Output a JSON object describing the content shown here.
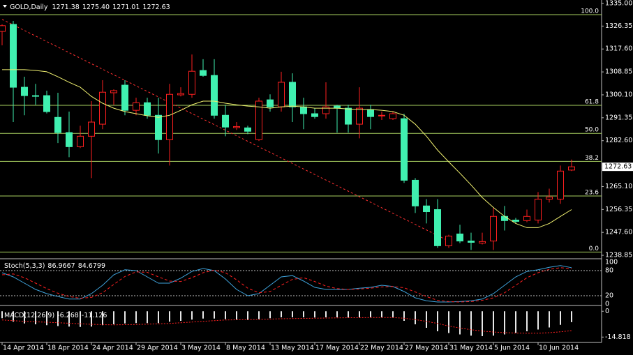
{
  "chart_data": [
    {
      "type": "candlestick",
      "title": "GOLD,Daily",
      "header_labels": [
        "1271.38",
        "1275.40",
        "1271.01",
        "1272.63"
      ],
      "categories": [
        "14 Apr 2014",
        null,
        null,
        null,
        "18 Apr 2014",
        null,
        null,
        null,
        "24 Apr 2014",
        null,
        null,
        null,
        "29 Apr 2014",
        null,
        null,
        null,
        "3 May 2014",
        null,
        null,
        null,
        "8 May 2014",
        null,
        null,
        null,
        "13 May 2014",
        null,
        null,
        null,
        "17 May 2014",
        null,
        null,
        null,
        "22 May 2014",
        null,
        null,
        null,
        "27 May 2014",
        null,
        null,
        null,
        "31 May 2014",
        null,
        null,
        null,
        "5 Jun 2014",
        null,
        null,
        null,
        "10 Jun 2014",
        null,
        null,
        null
      ],
      "open": [
        1324.3,
        1327.0,
        1303.0,
        1299.8,
        1299.8,
        1291.5,
        1285.7,
        1280.3,
        1284.3,
        1288.9,
        1300.9,
        1303.8,
        1294.2,
        1297.1,
        1292.3,
        1283.0,
        1300.1,
        1300.3,
        1309.4,
        1307.5,
        1292.3,
        1287.6,
        1287.5,
        1283.0,
        1298.2,
        1295.5,
        1304.9,
        1295.5,
        1292.9,
        1292.9,
        1295.8,
        1295.0,
        1288.9,
        1294.5,
        1292.1,
        1291.0,
        1291.0,
        1267.5,
        1257.7,
        1256.3,
        1242.5,
        1247.0,
        1244.3,
        1243.5,
        1244.3,
        1253.7,
        1252.3,
        1252.1,
        1252.3,
        1260.3,
        1260.3,
        1271.38
      ],
      "high": [
        1327.0,
        1328.3,
        1307.0,
        1304.3,
        1301.7,
        1300.9,
        1293.7,
        1288.3,
        1297.7,
        1305.7,
        1302.2,
        1305.7,
        1299.0,
        1299.0,
        1299.0,
        1304.3,
        1303.0,
        1315.5,
        1313.7,
        1313.7,
        1296.3,
        1289.7,
        1288.3,
        1299.0,
        1300.3,
        1308.9,
        1308.3,
        1299.0,
        1295.0,
        1304.9,
        1296.3,
        1296.3,
        1303.0,
        1296.3,
        1293.7,
        1293.7,
        1292.9,
        1268.3,
        1260.3,
        1260.3,
        1246.7,
        1250.5,
        1247.5,
        1247.5,
        1257.1,
        1257.7,
        1253.1,
        1256.3,
        1263.0,
        1264.3,
        1273.1,
        1275.4
      ],
      "low": [
        1319.0,
        1289.7,
        1292.3,
        1296.3,
        1293.0,
        1281.7,
        1276.3,
        1279.8,
        1268.3,
        1287.0,
        1296.3,
        1292.3,
        1292.3,
        1291.0,
        1277.7,
        1273.1,
        1299.5,
        1299.0,
        1307.0,
        1291.0,
        1284.3,
        1286.7,
        1285.1,
        1282.5,
        1293.7,
        1293.7,
        1289.7,
        1287.0,
        1291.0,
        1291.0,
        1285.7,
        1285.7,
        1283.5,
        1287.0,
        1290.5,
        1290.5,
        1266.5,
        1255.0,
        1251.0,
        1241.7,
        1241.7,
        1243.5,
        1240.9,
        1243.0,
        1240.9,
        1248.3,
        1251.0,
        1251.5,
        1251.0,
        1259.0,
        1258.5,
        1271.01
      ],
      "close": [
        1326.5,
        1303.0,
        1299.8,
        1299.6,
        1293.7,
        1285.7,
        1280.3,
        1284.3,
        1289.7,
        1301.1,
        1301.7,
        1294.2,
        1297.1,
        1292.3,
        1283.0,
        1300.3,
        1300.6,
        1309.1,
        1307.5,
        1292.3,
        1287.8,
        1288.0,
        1286.2,
        1297.7,
        1295.5,
        1304.9,
        1295.5,
        1292.9,
        1291.8,
        1295.5,
        1295.0,
        1288.9,
        1295.0,
        1291.8,
        1292.3,
        1292.9,
        1267.5,
        1257.7,
        1255.5,
        1242.5,
        1246.2,
        1244.3,
        1243.8,
        1244.1,
        1253.7,
        1252.1,
        1251.8,
        1253.7,
        1260.3,
        1261.1,
        1271.0,
        1272.63
      ],
      "up_color": "#ff2020",
      "down_color": "#40f0b0",
      "ma": {
        "color": "#f0f070",
        "values": [
          1309.7,
          1309.7,
          1309.7,
          1309.4,
          1308.9,
          1307.0,
          1304.9,
          1303.0,
          1299.5,
          1296.9,
          1295.0,
          1293.7,
          1292.9,
          1292.1,
          1291.5,
          1292.3,
          1294.2,
          1296.3,
          1297.7,
          1297.7,
          1296.9,
          1296.3,
          1295.8,
          1295.5,
          1295.0,
          1295.5,
          1295.8,
          1295.5,
          1295.0,
          1295.0,
          1295.0,
          1294.7,
          1294.5,
          1294.5,
          1294.2,
          1293.7,
          1292.3,
          1288.9,
          1284.3,
          1279.0,
          1274.5,
          1270.2,
          1265.7,
          1260.9,
          1257.1,
          1253.7,
          1251.0,
          1249.4,
          1249.4,
          1251.0,
          1253.7,
          1256.3
        ]
      },
      "trendline": {
        "color": "#ff3030",
        "x": [
          0,
          40
        ],
        "values": [
          1328.9,
          1244.3
        ]
      },
      "fibonacci": {
        "color": "#a8d060",
        "low": 1240.1,
        "high": 1330.7,
        "levels": [
          {
            "value": 100,
            "label": "100.0"
          },
          {
            "value": 61.8,
            "label": "61.8"
          },
          {
            "value": 50,
            "label": "50.0"
          },
          {
            "value": 38.2,
            "label": "38.2"
          },
          {
            "value": 23.6,
            "label": "23.6"
          },
          {
            "value": 0,
            "label": "0.0"
          }
        ]
      },
      "ylim": [
        1237.8,
        1336.3
      ],
      "yticks": [
        {
          "value": 1335,
          "label": "1335.00"
        },
        1326.35,
        {
          "value": 1317.6,
          "label": "1317.60"
        },
        1308.85,
        {
          "value": 1300.1,
          "label": "1300.10"
        },
        1291.35,
        {
          "value": 1282.6,
          "label": "1282.60"
        },
        {
          "value": 1265.1,
          "label": "1265.10"
        },
        1256.35,
        {
          "value": 1247.6,
          "label": "1247.60"
        },
        1238.85
      ]
    },
    {
      "type": "line",
      "title": "Stoch(5,3,3)",
      "series": [
        {
          "color": "#3fa3dc",
          "style": "solid",
          "values": [
            75,
            65,
            50,
            35,
            25,
            18,
            12,
            12,
            25,
            45,
            70,
            82,
            80,
            65,
            50,
            50,
            62,
            78,
            85,
            80,
            60,
            35,
            20,
            25,
            45,
            65,
            68,
            55,
            40,
            35,
            35,
            35,
            38,
            40,
            45,
            42,
            30,
            15,
            8,
            5,
            5,
            6,
            8,
            12,
            25,
            45,
            65,
            78,
            82,
            88,
            92,
            86.9667
          ]
        },
        {
          "color": "#ff2020",
          "style": "dashed",
          "values": [
            70,
            72,
            63,
            50,
            37,
            26,
            18,
            14,
            16,
            27,
            47,
            66,
            77,
            76,
            65,
            55,
            54,
            63,
            75,
            81,
            75,
            58,
            38,
            27,
            30,
            45,
            59,
            63,
            54,
            43,
            37,
            35,
            36,
            38,
            41,
            42,
            39,
            29,
            18,
            9,
            6,
            5,
            6,
            9,
            15,
            27,
            45,
            63,
            75,
            83,
            87,
            84.6799
          ]
        }
      ],
      "ylim": [
        0,
        100
      ],
      "yticks": [
        100,
        80,
        20,
        0
      ]
    },
    {
      "type": "bar",
      "title": "MACD(12,26,9)",
      "series": [
        {
          "color": "#e8e8e8",
          "style": "histogram",
          "values": [
            -4,
            -6,
            -7,
            -7.5,
            -8,
            -8.5,
            -8.8,
            -9,
            -8.8,
            -8,
            -7.5,
            -7,
            -6.8,
            -6.8,
            -6.8,
            -6,
            -5.5,
            -4.8,
            -4.2,
            -4.2,
            -4.5,
            -4.8,
            -5,
            -4.5,
            -4,
            -3.5,
            -3.5,
            -3.5,
            -3.6,
            -3.5,
            -3.5,
            -3.7,
            -3.5,
            -3.5,
            -3.5,
            -3.6,
            -5.5,
            -7.5,
            -9.5,
            -11.5,
            -12.5,
            -13.3,
            -14,
            -14.3,
            -14,
            -13.3,
            -12.5,
            -11.5,
            -10.5,
            -9.3,
            -7.8,
            -6.268
          ]
        },
        {
          "color": "#ff2020",
          "style": "dotted",
          "values": [
            -5.0,
            -5.4,
            -5.8,
            -6.1,
            -6.3,
            -6.6,
            -6.9,
            -7.2,
            -7.5,
            -7.7,
            -7.8,
            -7.7,
            -7.6,
            -7.4,
            -7.2,
            -7.0,
            -6.6,
            -6.2,
            -5.8,
            -5.4,
            -5.0,
            -4.9,
            -4.8,
            -4.7,
            -4.5,
            -4.3,
            -4.2,
            -4.1,
            -4.0,
            -3.9,
            -3.8,
            -3.7,
            -3.7,
            -3.6,
            -3.6,
            -3.6,
            -4.0,
            -4.8,
            -5.8,
            -7.0,
            -8.5,
            -9.6,
            -10.6,
            -11.4,
            -11.9,
            -12.3,
            -12.5,
            -12.6,
            -12.6,
            -12.3,
            -11.8,
            -11.126
          ]
        }
      ],
      "ylim": [
        -17.5,
        2.5
      ],
      "yticks": [
        0,
        -14.818
      ]
    }
  ]
}
